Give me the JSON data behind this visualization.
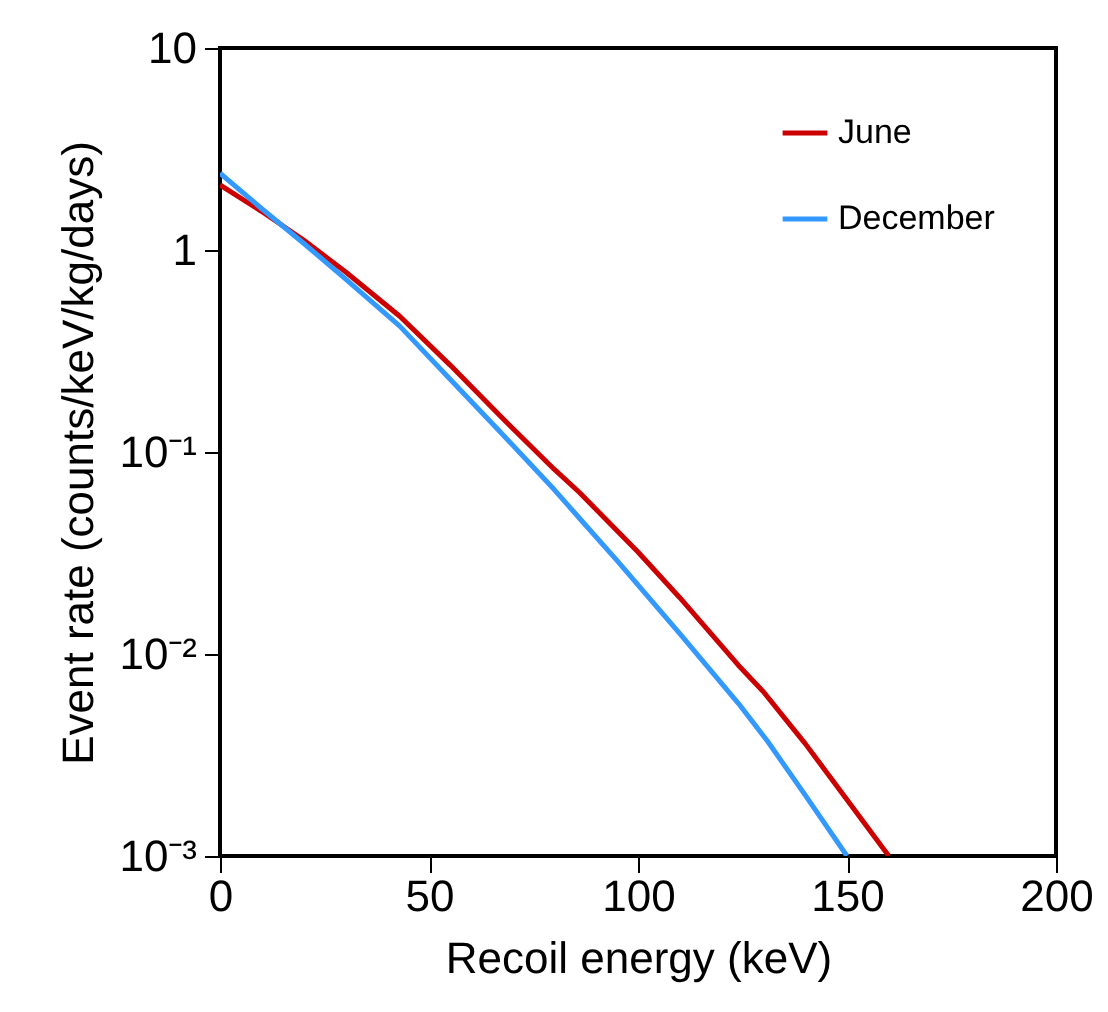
{
  "chart_data": {
    "type": "line",
    "xlabel": "Recoil energy (keV)",
    "ylabel": "Event rate (counts/keV/kg/days)",
    "x": [
      0,
      10,
      20,
      30,
      43,
      55,
      67,
      80,
      86,
      100,
      110,
      124,
      130,
      140,
      150,
      160
    ],
    "series": [
      {
        "name": "June",
        "color": "#cc0000",
        "values": [
          2.1,
          1.55,
          1.12,
          0.78,
          0.47,
          0.27,
          0.151,
          0.082,
          0.063,
          0.032,
          0.019,
          0.0088,
          0.0065,
          0.0036,
          0.0019,
          0.001
        ]
      },
      {
        "name": "December",
        "color": "#3399ff",
        "x": [
          0,
          10,
          20,
          30,
          43,
          55,
          67,
          80,
          86,
          95,
          110,
          124,
          131,
          140,
          150
        ],
        "values": [
          2.4,
          1.6,
          1.08,
          0.72,
          0.42,
          0.23,
          0.126,
          0.065,
          0.047,
          0.029,
          0.0126,
          0.0057,
          0.0037,
          0.002,
          0.001
        ]
      }
    ],
    "xlim": [
      0,
      200
    ],
    "xticks": [
      0,
      50,
      100,
      150,
      200
    ],
    "ylim": [
      0.001,
      10
    ],
    "yticks": [
      {
        "value": 0.001,
        "label": "10⁻³"
      },
      {
        "value": 0.01,
        "label": "10⁻²"
      },
      {
        "value": 0.1,
        "label": "10⁻¹"
      },
      1,
      10
    ],
    "log": "y",
    "grid": false,
    "legend": "top right",
    "marker": "none",
    "line_style": "solid"
  }
}
